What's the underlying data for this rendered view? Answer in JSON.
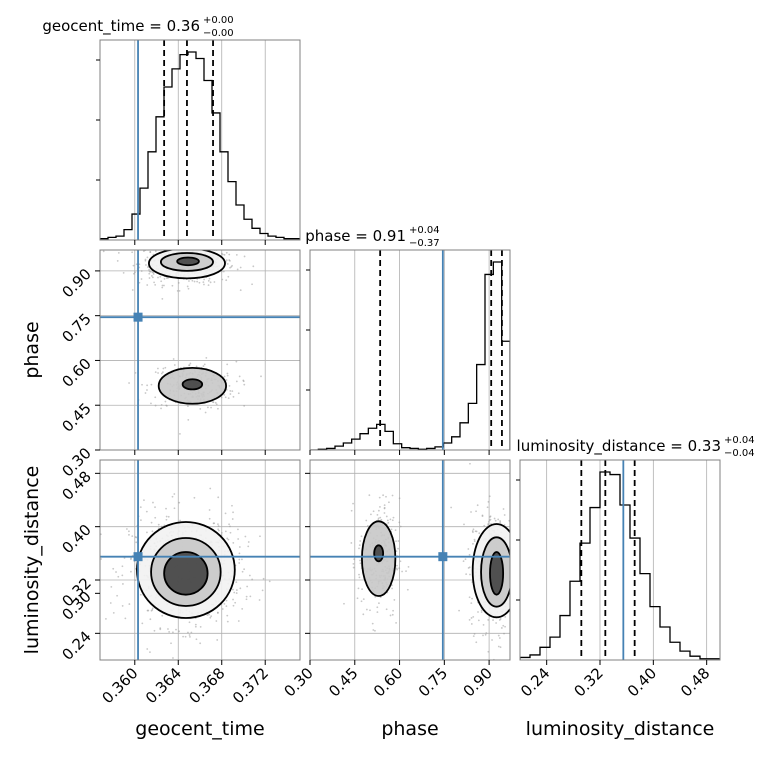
{
  "chart_data": {
    "type": "corner",
    "parameters": [
      "geocent_time",
      "phase",
      "luminosity_distance"
    ],
    "truth": {
      "geocent_time": 0.3603,
      "phase": 0.745,
      "luminosity_distance": 0.355
    },
    "ranges": {
      "geocent_time": [
        0.3568,
        0.3752
      ],
      "phase": [
        0.3,
        0.97
      ],
      "luminosity_distance": [
        0.2,
        0.5
      ]
    },
    "titles": {
      "geocent_time": {
        "label": "geocent_time = 0.36",
        "upper": "+0.00",
        "lower": "−0.00"
      },
      "phase": {
        "label": "phase = 0.91",
        "upper": "+0.04",
        "lower": "−0.37"
      },
      "luminosity_distance": {
        "label": "luminosity_distance = 0.33",
        "upper": "+0.04",
        "lower": "−0.04"
      }
    },
    "axis_labels": {
      "x": [
        "geocent_time",
        "phase",
        "luminosity_distance"
      ],
      "y": [
        "phase",
        "luminosity_distance"
      ]
    },
    "ticks": {
      "geocent_time": [
        {
          "v": 0.36,
          "label": "0.360"
        },
        {
          "v": 0.364,
          "label": "0.364"
        },
        {
          "v": 0.368,
          "label": "0.368"
        },
        {
          "v": 0.372,
          "label": "0.372"
        }
      ],
      "phase": [
        {
          "v": 0.3,
          "label": "0.30"
        },
        {
          "v": 0.45,
          "label": "0.45"
        },
        {
          "v": 0.6,
          "label": "0.60"
        },
        {
          "v": 0.75,
          "label": "0.75"
        },
        {
          "v": 0.9,
          "label": "0.90"
        }
      ],
      "luminosity_distance": [
        {
          "v": 0.24,
          "label": "0.24"
        },
        {
          "v": 0.32,
          "label": "0.32"
        },
        {
          "v": 0.4,
          "label": "0.40"
        },
        {
          "v": 0.48,
          "label": "0.48"
        }
      ],
      "luminosity_distance_y_extra": [
        {
          "v": 0.3,
          "label": "0.30"
        }
      ]
    },
    "quantiles": {
      "geocent_time": [
        0.3627,
        0.3648,
        0.3672
      ],
      "phase": [
        0.535,
        0.907,
        0.943
      ],
      "luminosity_distance": [
        0.292,
        0.328,
        0.372
      ]
    },
    "histograms": {
      "geocent_time": {
        "x0": 0.3568,
        "x1": 0.3752,
        "values": [
          1,
          2,
          3,
          8,
          20,
          40,
          68,
          95,
          118,
          132,
          143,
          145,
          140,
          123,
          98,
          68,
          45,
          27,
          16,
          9,
          5,
          3,
          2,
          1,
          1
        ]
      },
      "phase": {
        "x0": 0.3,
        "x1": 0.97,
        "values": [
          0,
          1,
          2,
          5,
          9,
          14,
          21,
          28,
          33,
          24,
          8,
          3,
          2,
          1,
          2,
          4,
          9,
          17,
          35,
          60,
          110,
          226,
          242,
          140
        ]
      },
      "luminosity_distance": {
        "x0": 0.2,
        "x1": 0.5,
        "values": [
          2,
          4,
          10,
          18,
          35,
          62,
          92,
          120,
          148,
          146,
          122,
          96,
          68,
          42,
          26,
          14,
          7,
          3,
          1,
          1
        ]
      }
    },
    "contours": {
      "geocent_time_vs_phase": [
        {
          "cx": 0.3648,
          "cy": 0.925,
          "rx": 0.0035,
          "ry": 0.05,
          "level": 3
        },
        {
          "cx": 0.3648,
          "cy": 0.93,
          "rx": 0.0024,
          "ry": 0.03,
          "level": 2
        },
        {
          "cx": 0.3649,
          "cy": 0.932,
          "rx": 0.001,
          "ry": 0.013,
          "level": 1
        },
        {
          "cx": 0.3653,
          "cy": 0.515,
          "rx": 0.0031,
          "ry": 0.06,
          "level": 2
        },
        {
          "cx": 0.3653,
          "cy": 0.52,
          "rx": 0.0009,
          "ry": 0.017,
          "level": 1
        }
      ],
      "geocent_time_vs_luminosity_distance": [
        {
          "cx": 0.3647,
          "cy": 0.335,
          "rx": 0.0045,
          "ry": 0.072,
          "level": 3
        },
        {
          "cx": 0.3647,
          "cy": 0.332,
          "rx": 0.0032,
          "ry": 0.051,
          "level": 2
        },
        {
          "cx": 0.3647,
          "cy": 0.33,
          "rx": 0.002,
          "ry": 0.032,
          "level": 1
        }
      ],
      "phase_vs_luminosity_distance": [
        {
          "cx": 0.53,
          "cy": 0.352,
          "rx": 0.056,
          "ry": 0.056,
          "level": 2
        },
        {
          "cx": 0.53,
          "cy": 0.36,
          "rx": 0.015,
          "ry": 0.012,
          "level": 1
        },
        {
          "cx": 0.925,
          "cy": 0.334,
          "rx": 0.08,
          "ry": 0.07,
          "level": 3
        },
        {
          "cx": 0.925,
          "cy": 0.332,
          "rx": 0.052,
          "ry": 0.052,
          "level": 2
        },
        {
          "cx": 0.925,
          "cy": 0.33,
          "rx": 0.022,
          "ry": 0.032,
          "level": 1
        }
      ]
    },
    "grid": true,
    "colors": {
      "truth": "#4682b4",
      "histogram": "#000000",
      "grid": "#b0b0b0",
      "scatter": "#9a9a9a",
      "axes": "#808080"
    }
  }
}
